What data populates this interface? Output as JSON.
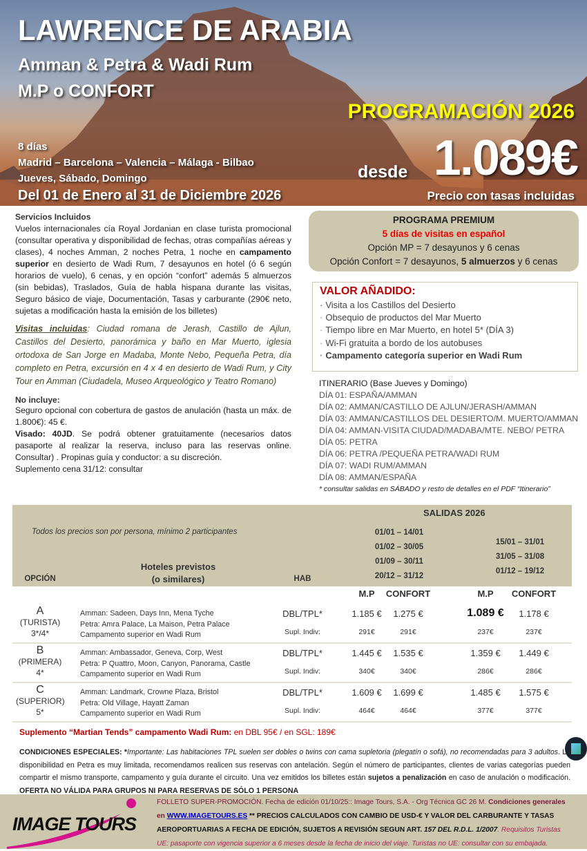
{
  "header": {
    "title": "LAWRENCE DE ARABIA",
    "subtitle1": "Amman & Petra & Wadi Rum",
    "subtitle2": "M.P o CONFORT",
    "programacion": "PROGRAMACIÓN 2026",
    "duration": "8 días",
    "cities": "Madrid – Barcelona – Valencia – Málaga - Bilbao",
    "days": "Jueves, Sábado, Domingo",
    "dates": "Del 01 de Enero al 31 de Diciembre 2026",
    "desde": "desde",
    "price": "1.089€",
    "price_note": "Precio con tasas incluidas"
  },
  "servicios": {
    "title": "Servicios Incluidos",
    "p1": "Vuelos internacionales cía Royal Jordanian en clase turista promocional (consultar operativa y disponibilidad de fechas, otras compañías aéreas y clases), 4 noches Amman, 2 noches Petra, 1 noche en ",
    "p1_bold": "campamento superior",
    "p1_rest": " en desierto de Wadi Rum, 7 desayunos en hotel (ó 6 según horarios de vuelo),  6 cenas, y en opción “confort” además 5 almuerzos (sin bebidas), Traslados, Guía de habla hispana durante las visitas, Seguro básico de viaje, Documentación, Tasas y carburante (290€ neto, sujetas a modificación hasta la emisión de los billetes)",
    "visitas_label": "Visitas incluidas",
    "visitas": ": Ciudad romana de Jerash, Castillo de Ajlun, Castillos del Desierto, panorámica y baño en Mar Muerto, iglesia ortodoxa de San Jorge en Madaba, Monte Nebo, Pequeña Petra, día completo en Petra, excursión en 4 x 4 en desierto de Wadi Rum, y City Tour en Amman (Ciudadela, Museo Arqueológico y Teatro Romano)",
    "no_incluye_title": "No incluye:",
    "no_incluye": "Seguro opcional con cobertura de gastos de anulación (hasta un máx. de  1.800€): 45 €.",
    "visado_label": "Visado: 40JD",
    "visado": ". Se podrá obtener gratuitamente (necesarios datos pasaporte al realizar la reserva, incluso para las reservas online. Consultar) . Propinas guía y conductor: a su discreción.",
    "suplemento": "Suplemento cena 31/12: consultar"
  },
  "premium": {
    "title": "PROGRAMA PREMIUM",
    "red": "5 días de visitas en español",
    "mp": "Opción MP = 7 desayunos y 6 cenas",
    "confort_a": "Opción Confort = 7 desayunos, ",
    "confort_b": "5 almuerzos",
    "confort_c": " y 6 cenas"
  },
  "valor": {
    "title": "VALOR AÑADIDO:",
    "items": [
      "Visita a los Castillos del Desierto",
      "Obsequio de productos del Mar Muerto",
      "Tiempo libre en Mar Muerto, en hotel 5* (DÍA 3)",
      "Wi-Fi gratuita a bordo de los autobuses",
      "Campamento categoría superior en Wadi Rum"
    ]
  },
  "itinerario": {
    "title": "ITINERARIO (Base Jueves y Domingo)",
    "days": [
      "DÍA 01: ESPAÑA/AMMAN",
      "DÍA 02: AMMAN/CASTILLO DE AJLUN/JERASH/AMMAN",
      "DÍA 03: AMMAN/CASTILLOS DEL DESIERTO/M. MUERTO/AMMAN",
      "DÍA 04: AMMAN-VISITA CIUDAD/MADABA/MTE. NEBO/ PETRA",
      "DÍA 05: PETRA",
      "DÍA 06: PETRA /PEQUEÑA PETRA/WADI RUM",
      "DÍA 07: WADI RUM/AMMAN",
      "DÍA 08: AMMAN/ESPAÑA"
    ],
    "note": "* consultar salidas en SÁBADO y resto de detalles en el PDF  “Itinerario”"
  },
  "table": {
    "salidas": "SALIDAS 2026",
    "note": "Todos los precios son por persona, mínimo 2 participantes",
    "col_opcion": "OPCIÓN",
    "col_hoteles_1": "Hoteles previstos",
    "col_hoteles_2": "(o similares)",
    "col_hab": "HAB",
    "period1": [
      "01/01 – 14/01",
      "01/02 – 30/05",
      "01/09 – 30/11",
      "20/12 – 31/12"
    ],
    "period2": [
      "15/01 – 31/01",
      "31/05 – 31/08",
      "01/12 – 19/12"
    ],
    "sub": [
      "M.P",
      "CONFORT",
      "M.P",
      "CONFORT"
    ],
    "rows": [
      {
        "letter": "A",
        "cat": "(TURISTA)",
        "stars": "3*/4*",
        "hotels": [
          "Amman: Sadeen, Days Inn, Mena Tyche",
          "Petra: Amra Palace, La Maison, Petra Palace",
          "Campamento superior en Wadi Rum"
        ],
        "hab": "DBL/TPL*",
        "supl": "Supl. Indiv:",
        "prices": [
          "1.185 €",
          "1.275 €",
          "1.089 €",
          "1.178 €"
        ],
        "supls": [
          "291€",
          "291€",
          "237€",
          "237€"
        ]
      },
      {
        "letter": "B",
        "cat": "(PRIMERA)",
        "stars": "4*",
        "hotels": [
          "Amman: Ambassador,  Geneva, Corp, West",
          "Petra: P Quattro, Moon, Canyon, Panorama, Castle",
          "Campamento superior en Wadi Rum"
        ],
        "hab": "DBL/TPL*",
        "supl": "Supl. Indiv:",
        "prices": [
          "1.445 €",
          "1.535 €",
          "1.359 €",
          "1.449 €"
        ],
        "supls": [
          "340€",
          "340€",
          "286€",
          "286€"
        ]
      },
      {
        "letter": "C",
        "cat": "(SUPERIOR)",
        "stars": "5*",
        "hotels": [
          "Amman: Landmark, Crowne Plaza, Bristol",
          "Petra: Old Village, Hayatt Zaman",
          "Campamento superior en Wadi Rum"
        ],
        "hab": "DBL/TPL*",
        "supl": "Supl. Indiv:",
        "prices": [
          "1.609 €",
          "1.699 €",
          "1.485 €",
          "1.575 €"
        ],
        "supls": [
          "464€",
          "464€",
          "377€",
          "377€"
        ]
      }
    ]
  },
  "martian": {
    "label": "Suplemento “Martian Tends” campamento Wadi Rum:",
    "value": " en DBL 95€  / en SGL: 189€"
  },
  "condiciones": {
    "label": "CONDICIONES ESPECIALES: ",
    "star": "*",
    "imp": "Importante: Las habitaciones TPL suelen ser dobles o twins con cama supletoria (plegatín o sofá), no recomendadas para 3 adultos",
    "t1": ".  La disponibilidad en Petra es muy limitada, recomendamos realicen sus reservas con antelación. Según el número de participantes, clientes de varias categorías pueden compartir el mismo transporte, campamento y guía durante el circuito.  Una vez emitidos los billetes están ",
    "b1": "sujetos a penalización",
    "t2": " en caso de anulación o modificación.  ",
    "b2": "OFERTA NO VÁLIDA PARA GRUPOS NI PARA RESERVAS DE SÓLO 1 PERSONA"
  },
  "footer": {
    "logo": "IMAGE TOURS",
    "l1": "FOLLETO SUPER-PROMOCIÓN. Fecha de edición 01/10/25::  Image Tours, S.A.  -  Org Técnica GC 26 M. ",
    "l1b": "Condiciones generales",
    "l2a": "en ",
    "link": "WWW.IMAGETOURS.ES",
    "l2b": "  ** PRECIOS CALCULADOS CON CAMBIO DE USD-€ Y VALOR DEL CARBURANTE Y TASAS",
    "l3a": "AEROPORTUARIAS A FECHA DE EDICIÓN, SUJETOS A REVISIÓN SEGUN ART. ",
    "l3b": "157 DEL R.D.L. 1/2007",
    "l3c": ". Requisitos Turistas",
    "l4": "UE: pasaporte con vigencia superior a 6 meses desde la fecha de inicio del viaje. Turistas no UE: consultar con su embajada."
  },
  "colors": {
    "tan": "#cdc7ae",
    "red": "#c00000",
    "yellow": "#ffff00",
    "magenta": "#d4148c"
  }
}
